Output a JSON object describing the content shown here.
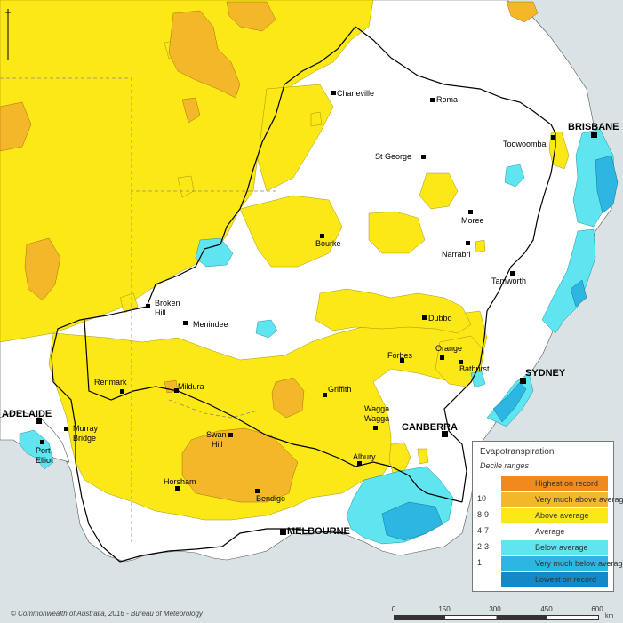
{
  "colors": {
    "ocean": "#d9e2e5",
    "neighbor_land": "#ffffff",
    "above_average": "#fbe816",
    "very_much_above": "#f5b72a",
    "highest": "#f08a1e",
    "average": "#ffffff",
    "below_average": "#5fe5ef",
    "very_much_below": "#2db6e1",
    "lowest": "#1489c8",
    "border": "#000000"
  },
  "legend": {
    "title": "Evapotranspiration",
    "subtitle": "Decile ranges",
    "items": [
      {
        "decile": "",
        "label": "Highest on record",
        "color": "#f08a1e"
      },
      {
        "decile": "10",
        "label": "Very much above average",
        "color": "#f5b72a"
      },
      {
        "decile": "8-9",
        "label": "Above average",
        "color": "#fbe816"
      },
      {
        "decile": "4-7",
        "label": "Average",
        "color": "#ffffff"
      },
      {
        "decile": "2-3",
        "label": "Below average",
        "color": "#5fe5ef"
      },
      {
        "decile": "1",
        "label": "Very much below average",
        "color": "#2db6e1"
      },
      {
        "decile": "",
        "label": "Lowest on record",
        "color": "#1489c8"
      }
    ]
  },
  "places": {
    "charleville": "Charleville",
    "roma": "Roma",
    "brisbane": "BRISBANE",
    "toowoomba": "Toowoomba",
    "st_george": "St George",
    "moree": "Moree",
    "narrabri": "Narrabri",
    "bourke": "Bourke",
    "tamworth": "Tamworth",
    "broken_hill_1": "Broken",
    "broken_hill_2": "Hill",
    "menindee": "Menindee",
    "dubbo": "Dubbo",
    "orange": "Orange",
    "bathurst": "Bathurst",
    "forbes": "Forbes",
    "sydney": "SYDNEY",
    "renmark": "Renmark",
    "mildura": "Mildura",
    "griffith": "Griffith",
    "wagga_1": "Wagga",
    "wagga_2": "Wagga",
    "canberra": "CANBERRA",
    "adelaide": "ADELAIDE",
    "murray_bridge_1": "Murray",
    "murray_bridge_2": "Bridge",
    "port_elliot_1": "Port",
    "port_elliot_2": "Elliot",
    "swan_hill_1": "Swan",
    "swan_hill_2": "Hill",
    "albury": "Albury",
    "horsham": "Horsham",
    "bendigo": "Bendigo",
    "melbourne": "MELBOURNE"
  },
  "scale": {
    "ticks": [
      "0",
      "150",
      "300",
      "450",
      "600"
    ],
    "unit": "km"
  },
  "copyright": "© Commonwealth of Australia, 2016 - Bureau of Meteorology"
}
